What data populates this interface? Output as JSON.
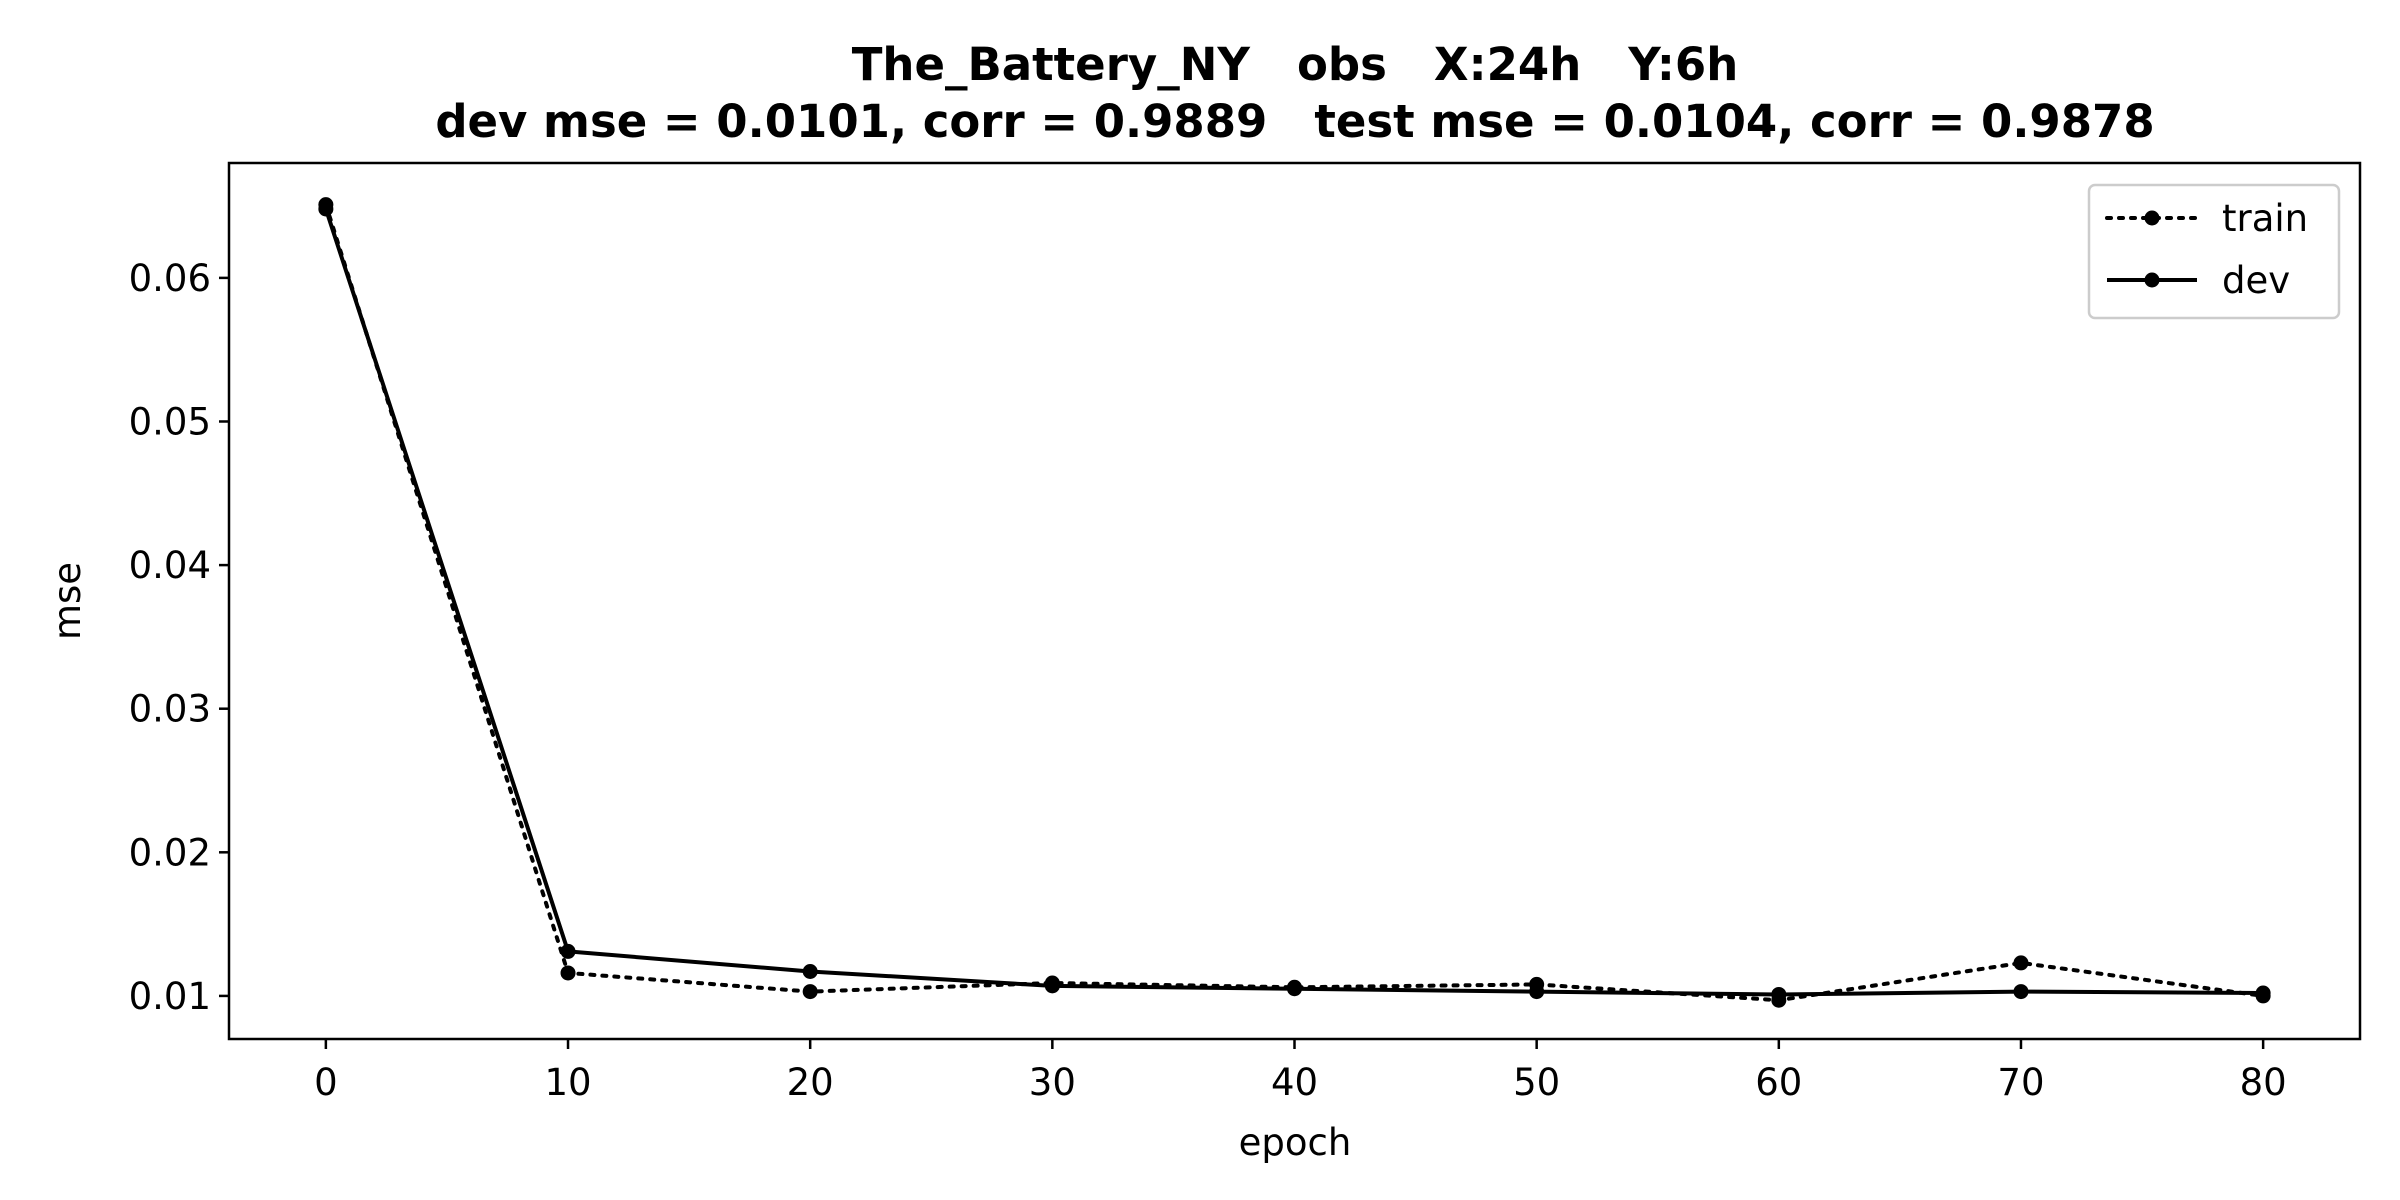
{
  "chart_data": {
    "type": "line",
    "title_line1": "The_Battery_NY   obs   X:24h   Y:6h",
    "title_line2": "dev mse = 0.0101, corr = 0.9889   test mse = 0.0104, corr = 0.9878",
    "xlabel": "epoch",
    "ylabel": "mse",
    "xlim": [
      -4,
      84
    ],
    "ylim": [
      0.007,
      0.068
    ],
    "x_ticks": [
      0,
      10,
      20,
      30,
      40,
      50,
      60,
      70,
      80
    ],
    "y_ticks": [
      0.01,
      0.02,
      0.03,
      0.04,
      0.05,
      0.06
    ],
    "y_tick_labels": [
      "0.01",
      "0.02",
      "0.03",
      "0.04",
      "0.05",
      "0.06"
    ],
    "grid": false,
    "legend_position": "top-right",
    "x": [
      0,
      10,
      20,
      30,
      40,
      50,
      60,
      70,
      80
    ],
    "series": [
      {
        "name": "train",
        "style": "dotted",
        "color": "#000000",
        "values": [
          0.0651,
          0.0116,
          0.0103,
          0.0109,
          0.0106,
          0.0108,
          0.0097,
          0.0123,
          0.01
        ]
      },
      {
        "name": "dev",
        "style": "solid",
        "color": "#000000",
        "values": [
          0.0648,
          0.0131,
          0.0117,
          0.0107,
          0.0105,
          0.0103,
          0.0101,
          0.0103,
          0.0102
        ]
      }
    ]
  }
}
